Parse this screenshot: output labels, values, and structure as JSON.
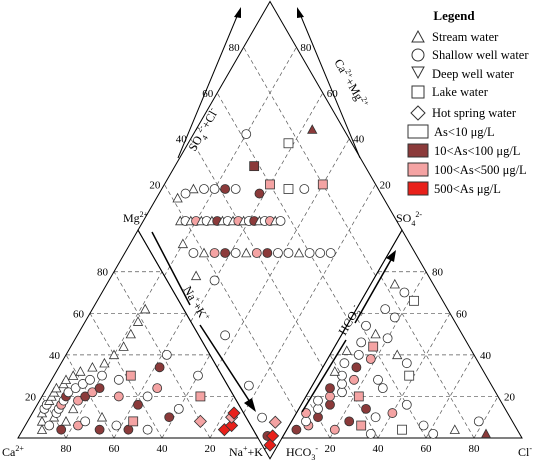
{
  "chart_data": {
    "type": "scatter",
    "subtype": "piper-diagram",
    "legend": {
      "title": "Legend",
      "placement": "top-right",
      "shape_entries": [
        {
          "label": "Stream water",
          "marker": "triangle-up"
        },
        {
          "label": "Shallow well water",
          "marker": "circle"
        },
        {
          "label": "Deep well water",
          "marker": "triangle-down"
        },
        {
          "label": "Lake water",
          "marker": "square"
        },
        {
          "label": "Hot spring water",
          "marker": "diamond"
        }
      ],
      "color_entries": [
        {
          "label": "As<10 μg/L",
          "color": "#ffffff"
        },
        {
          "label": "10<As<100 μg/L",
          "color": "#8b3a3a"
        },
        {
          "label": "100<As<500 μg/L",
          "color": "#f4a3a3"
        },
        {
          "label": "500<As μg/L",
          "color": "#e8201a"
        }
      ]
    },
    "tick_labels": [
      "20",
      "40",
      "60",
      "80"
    ],
    "axis_labels": {
      "ca": "Ca",
      "ca_sup": "2+",
      "mg": "Mg",
      "mg_sup": "2+",
      "nak": "Na",
      "nak_sup1": "+",
      "nak_mid": "+K",
      "nak_sup2": "+",
      "hco3": "HCO",
      "hco3_sub": "3",
      "hco3_sup": "-",
      "cl": "Cl",
      "cl_sup": "-",
      "so4": "SO",
      "so4_sub": "4",
      "so4_sup": "2-",
      "so4cl": "SO",
      "so4cl_sub": "4",
      "so4cl_sup": "2-",
      "so4cl_rest": "+Cl",
      "so4cl_rest_sup": "-",
      "camg": "Ca",
      "camg_sup": "2+",
      "camg_mid": "+Mg",
      "camg_sup2": "2+"
    },
    "colors": {
      "low": "#ffffff",
      "mid": "#8b3a3a",
      "high": "#f4a3a3",
      "vhigh": "#e8201a",
      "stroke": "#333333"
    },
    "cation_points": [
      {
        "ca": 86,
        "mg": 8,
        "m": "t",
        "c": "low"
      },
      {
        "ca": 84,
        "mg": 12,
        "m": "t",
        "c": "low"
      },
      {
        "ca": 82,
        "mg": 14,
        "m": "c",
        "c": "low"
      },
      {
        "ca": 80,
        "mg": 10,
        "m": "t",
        "c": "low"
      },
      {
        "ca": 80,
        "mg": 16,
        "m": "c",
        "c": "low"
      },
      {
        "ca": 78,
        "mg": 18,
        "m": "t",
        "c": "low"
      },
      {
        "ca": 78,
        "mg": 12,
        "m": "c",
        "c": "low"
      },
      {
        "ca": 76,
        "mg": 20,
        "m": "t",
        "c": "low"
      },
      {
        "ca": 76,
        "mg": 14,
        "m": "c",
        "c": "low"
      },
      {
        "ca": 74,
        "mg": 22,
        "m": "t",
        "c": "low"
      },
      {
        "ca": 74,
        "mg": 16,
        "m": "c",
        "c": "high"
      },
      {
        "ca": 72,
        "mg": 18,
        "m": "c",
        "c": "low"
      },
      {
        "ca": 72,
        "mg": 24,
        "m": "t",
        "c": "low"
      },
      {
        "ca": 70,
        "mg": 20,
        "m": "c",
        "c": "mid"
      },
      {
        "ca": 70,
        "mg": 14,
        "m": "t",
        "c": "low"
      },
      {
        "ca": 68,
        "mg": 22,
        "m": "c",
        "c": "low"
      },
      {
        "ca": 68,
        "mg": 26,
        "m": "t",
        "c": "low"
      },
      {
        "ca": 66,
        "mg": 18,
        "m": "c",
        "c": "high"
      },
      {
        "ca": 66,
        "mg": 28,
        "m": "t",
        "c": "low"
      },
      {
        "ca": 64,
        "mg": 24,
        "m": "c",
        "c": "low"
      },
      {
        "ca": 62,
        "mg": 20,
        "m": "c",
        "c": "mid"
      },
      {
        "ca": 62,
        "mg": 30,
        "m": "t",
        "c": "low"
      },
      {
        "ca": 60,
        "mg": 26,
        "m": "c",
        "c": "low"
      },
      {
        "ca": 58,
        "mg": 22,
        "m": "c",
        "c": "high"
      },
      {
        "ca": 58,
        "mg": 32,
        "m": "t",
        "c": "low"
      },
      {
        "ca": 56,
        "mg": 28,
        "m": "c",
        "c": "low"
      },
      {
        "ca": 54,
        "mg": 24,
        "m": "c",
        "c": "mid"
      },
      {
        "ca": 52,
        "mg": 34,
        "m": "t",
        "c": "low"
      },
      {
        "ca": 50,
        "mg": 30,
        "m": "c",
        "c": "low"
      },
      {
        "ca": 48,
        "mg": 20,
        "m": "c",
        "c": "high"
      },
      {
        "ca": 46,
        "mg": 36,
        "m": "t",
        "c": "low"
      },
      {
        "ca": 44,
        "mg": 28,
        "m": "c",
        "c": "low"
      },
      {
        "ca": 42,
        "mg": 16,
        "m": "c",
        "c": "mid"
      },
      {
        "ca": 40,
        "mg": 40,
        "m": "t",
        "c": "low"
      },
      {
        "ca": 38,
        "mg": 30,
        "m": "s",
        "c": "high"
      },
      {
        "ca": 36,
        "mg": 20,
        "m": "c",
        "c": "low"
      },
      {
        "ca": 34,
        "mg": 44,
        "m": "t",
        "c": "low"
      },
      {
        "ca": 32,
        "mg": 10,
        "m": "c",
        "c": "mid"
      },
      {
        "ca": 30,
        "mg": 24,
        "m": "c",
        "c": "high"
      },
      {
        "ca": 28,
        "mg": 50,
        "m": "t",
        "c": "low"
      },
      {
        "ca": 26,
        "mg": 14,
        "m": "c",
        "c": "low"
      },
      {
        "ca": 24,
        "mg": 34,
        "m": "c",
        "c": "mid"
      },
      {
        "ca": 22,
        "mg": 56,
        "m": "t",
        "c": "low"
      },
      {
        "ca": 20,
        "mg": 8,
        "m": "d",
        "c": "high"
      },
      {
        "ca": 18,
        "mg": 40,
        "m": "c",
        "c": "low"
      },
      {
        "ca": 16,
        "mg": 62,
        "m": "t",
        "c": "low"
      },
      {
        "ca": 14,
        "mg": 20,
        "m": "s",
        "c": "high"
      },
      {
        "ca": 12,
        "mg": 4,
        "m": "d",
        "c": "vhigh"
      },
      {
        "ca": 10,
        "mg": 30,
        "m": "c",
        "c": "low"
      },
      {
        "ca": 8,
        "mg": 6,
        "m": "d",
        "c": "vhigh"
      },
      {
        "ca": 6,
        "mg": 10,
        "m": "d",
        "c": "high"
      },
      {
        "ca": 4,
        "mg": 12,
        "m": "d",
        "c": "vhigh"
      },
      {
        "ca": 88,
        "mg": 4,
        "m": "t",
        "c": "low"
      },
      {
        "ca": 84,
        "mg": 6,
        "m": "c",
        "c": "low"
      },
      {
        "ca": 80,
        "mg": 4,
        "m": "c",
        "c": "mid"
      },
      {
        "ca": 76,
        "mg": 8,
        "m": "t",
        "c": "low"
      },
      {
        "ca": 72,
        "mg": 6,
        "m": "c",
        "c": "high"
      },
      {
        "ca": 68,
        "mg": 8,
        "m": "c",
        "c": "low"
      },
      {
        "ca": 64,
        "mg": 4,
        "m": "c",
        "c": "mid"
      },
      {
        "ca": 60,
        "mg": 10,
        "m": "t",
        "c": "low"
      },
      {
        "ca": 56,
        "mg": 6,
        "m": "c",
        "c": "low"
      },
      {
        "ca": 52,
        "mg": 4,
        "m": "c",
        "c": "mid"
      },
      {
        "ca": 48,
        "mg": 8,
        "m": "s",
        "c": "high"
      },
      {
        "ca": 44,
        "mg": 4,
        "m": "c",
        "c": "low"
      }
    ],
    "anion_points": [
      {
        "so4": 4,
        "cl": 4,
        "m": "c",
        "c": "mid"
      },
      {
        "so4": 6,
        "cl": 8,
        "m": "c",
        "c": "high"
      },
      {
        "so4": 8,
        "cl": 6,
        "m": "c",
        "c": "low"
      },
      {
        "so4": 10,
        "cl": 10,
        "m": "c",
        "c": "mid"
      },
      {
        "so4": 12,
        "cl": 4,
        "m": "c",
        "c": "high"
      },
      {
        "so4": 14,
        "cl": 8,
        "m": "c",
        "c": "low"
      },
      {
        "so4": 16,
        "cl": 12,
        "m": "c",
        "c": "mid"
      },
      {
        "so4": 18,
        "cl": 6,
        "m": "c",
        "c": "low"
      },
      {
        "so4": 20,
        "cl": 10,
        "m": "c",
        "c": "high"
      },
      {
        "so4": 22,
        "cl": 14,
        "m": "c",
        "c": "low"
      },
      {
        "so4": 24,
        "cl": 8,
        "m": "c",
        "c": "mid"
      },
      {
        "so4": 26,
        "cl": 12,
        "m": "c",
        "c": "low"
      },
      {
        "so4": 28,
        "cl": 16,
        "m": "c",
        "c": "high"
      },
      {
        "so4": 30,
        "cl": 10,
        "m": "c",
        "c": "low"
      },
      {
        "so4": 32,
        "cl": 6,
        "m": "t",
        "c": "low"
      },
      {
        "so4": 34,
        "cl": 14,
        "m": "c",
        "c": "mid"
      },
      {
        "so4": 36,
        "cl": 8,
        "m": "c",
        "c": "low"
      },
      {
        "so4": 38,
        "cl": 18,
        "m": "c",
        "c": "high"
      },
      {
        "so4": 40,
        "cl": 12,
        "m": "c",
        "c": "low"
      },
      {
        "so4": 42,
        "cl": 6,
        "m": "t",
        "c": "low"
      },
      {
        "so4": 44,
        "cl": 16,
        "m": "s",
        "c": "high"
      },
      {
        "so4": 46,
        "cl": 10,
        "m": "c",
        "c": "low"
      },
      {
        "so4": 48,
        "cl": 20,
        "m": "c",
        "c": "low"
      },
      {
        "so4": 50,
        "cl": 14,
        "m": "t",
        "c": "low"
      },
      {
        "so4": 54,
        "cl": 8,
        "m": "c",
        "c": "low"
      },
      {
        "so4": 58,
        "cl": 18,
        "m": "c",
        "c": "low"
      },
      {
        "so4": 62,
        "cl": 12,
        "m": "c",
        "c": "low"
      },
      {
        "so4": 66,
        "cl": 22,
        "m": "s",
        "c": "low"
      },
      {
        "so4": 70,
        "cl": 16,
        "m": "c",
        "c": "low"
      },
      {
        "so4": 74,
        "cl": 10,
        "m": "t",
        "c": "low"
      },
      {
        "so4": 4,
        "cl": 20,
        "m": "c",
        "c": "high"
      },
      {
        "so4": 8,
        "cl": 24,
        "m": "c",
        "c": "mid"
      },
      {
        "so4": 6,
        "cl": 30,
        "m": "s",
        "c": "high"
      },
      {
        "so4": 10,
        "cl": 34,
        "m": "c",
        "c": "low"
      },
      {
        "so4": 12,
        "cl": 40,
        "m": "c",
        "c": "high"
      },
      {
        "so4": 14,
        "cl": 28,
        "m": "c",
        "c": "mid"
      },
      {
        "so4": 16,
        "cl": 44,
        "m": "c",
        "c": "low"
      },
      {
        "so4": 2,
        "cl": 36,
        "m": "c",
        "c": "low"
      },
      {
        "so4": 4,
        "cl": 48,
        "m": "s",
        "c": "low"
      },
      {
        "so4": 6,
        "cl": 56,
        "m": "c",
        "c": "low"
      },
      {
        "so4": 2,
        "cl": 62,
        "m": "c",
        "c": "low"
      },
      {
        "so4": 4,
        "cl": 70,
        "m": "t",
        "c": "low"
      },
      {
        "so4": 8,
        "cl": 78,
        "m": "c",
        "c": "low"
      },
      {
        "so4": 2,
        "cl": 84,
        "m": "t",
        "c": "mid"
      },
      {
        "so4": 20,
        "cl": 22,
        "m": "s",
        "c": "high"
      },
      {
        "so4": 24,
        "cl": 30,
        "m": "c",
        "c": "low"
      },
      {
        "so4": 28,
        "cl": 26,
        "m": "c",
        "c": "low"
      },
      {
        "so4": 30,
        "cl": 38,
        "m": "s",
        "c": "low"
      },
      {
        "so4": 36,
        "cl": 34,
        "m": "c",
        "c": "low"
      },
      {
        "so4": 40,
        "cl": 28,
        "m": "t",
        "c": "low"
      }
    ],
    "diamond_points": [
      {
        "so4cl": 18,
        "camg": 86,
        "m": "t",
        "c": "low"
      },
      {
        "so4cl": 20,
        "camg": 84,
        "m": "c",
        "c": "low"
      },
      {
        "so4cl": 22,
        "camg": 82,
        "m": "t",
        "c": "low"
      },
      {
        "so4cl": 24,
        "camg": 80,
        "m": "c",
        "c": "high"
      },
      {
        "so4cl": 26,
        "camg": 78,
        "m": "t",
        "c": "low"
      },
      {
        "so4cl": 28,
        "camg": 76,
        "m": "c",
        "c": "low"
      },
      {
        "so4cl": 30,
        "camg": 74,
        "m": "t",
        "c": "low"
      },
      {
        "so4cl": 32,
        "camg": 72,
        "m": "c",
        "c": "mid"
      },
      {
        "so4cl": 34,
        "camg": 70,
        "m": "t",
        "c": "low"
      },
      {
        "so4cl": 36,
        "camg": 68,
        "m": "c",
        "c": "low"
      },
      {
        "so4cl": 38,
        "camg": 66,
        "m": "t",
        "c": "low"
      },
      {
        "so4cl": 40,
        "camg": 64,
        "m": "c",
        "c": "high"
      },
      {
        "so4cl": 42,
        "camg": 62,
        "m": "t",
        "c": "low"
      },
      {
        "so4cl": 44,
        "camg": 60,
        "m": "c",
        "c": "low"
      },
      {
        "so4cl": 46,
        "camg": 58,
        "m": "c",
        "c": "mid"
      },
      {
        "so4cl": 48,
        "camg": 56,
        "m": "t",
        "c": "low"
      },
      {
        "so4cl": 50,
        "camg": 54,
        "m": "c",
        "c": "low"
      },
      {
        "so4cl": 52,
        "camg": 52,
        "m": "c",
        "c": "high"
      },
      {
        "so4cl": 54,
        "camg": 50,
        "m": "t",
        "c": "low"
      },
      {
        "so4cl": 56,
        "camg": 48,
        "m": "c",
        "c": "low"
      },
      {
        "so4cl": 14,
        "camg": 80,
        "m": "t",
        "c": "low"
      },
      {
        "so4cl": 16,
        "camg": 74,
        "m": "c",
        "c": "low"
      },
      {
        "so4cl": 20,
        "camg": 70,
        "m": "t",
        "c": "low"
      },
      {
        "so4cl": 24,
        "camg": 66,
        "m": "c",
        "c": "high"
      },
      {
        "so4cl": 28,
        "camg": 62,
        "m": "c",
        "c": "mid"
      },
      {
        "so4cl": 32,
        "camg": 58,
        "m": "c",
        "c": "low"
      },
      {
        "so4cl": 36,
        "camg": 54,
        "m": "t",
        "c": "low"
      },
      {
        "so4cl": 40,
        "camg": 50,
        "m": "c",
        "c": "high"
      },
      {
        "so4cl": 44,
        "camg": 46,
        "m": "c",
        "c": "mid"
      },
      {
        "so4cl": 48,
        "camg": 42,
        "m": "c",
        "c": "low"
      },
      {
        "so4cl": 52,
        "camg": 38,
        "m": "c",
        "c": "low"
      },
      {
        "so4cl": 56,
        "camg": 34,
        "m": "t",
        "c": "low"
      },
      {
        "so4cl": 60,
        "camg": 30,
        "m": "c",
        "c": "low"
      },
      {
        "so4cl": 64,
        "camg": 26,
        "m": "c",
        "c": "low"
      },
      {
        "so4cl": 68,
        "camg": 22,
        "m": "c",
        "c": "low"
      },
      {
        "so4cl": 30,
        "camg": 88,
        "m": "t",
        "c": "low"
      },
      {
        "so4cl": 34,
        "camg": 84,
        "m": "c",
        "c": "low"
      },
      {
        "so4cl": 38,
        "camg": 80,
        "m": "c",
        "c": "low"
      },
      {
        "so4cl": 42,
        "camg": 76,
        "m": "c",
        "c": "mid"
      },
      {
        "so4cl": 46,
        "camg": 72,
        "m": "c",
        "c": "low"
      },
      {
        "so4cl": 60,
        "camg": 60,
        "m": "s",
        "c": "high"
      },
      {
        "so4cl": 66,
        "camg": 52,
        "m": "s",
        "c": "low"
      },
      {
        "so4cl": 72,
        "camg": 46,
        "m": "c",
        "c": "low"
      },
      {
        "so4cl": 80,
        "camg": 40,
        "m": "s",
        "c": "high"
      },
      {
        "so4cl": 88,
        "camg": 56,
        "m": "t",
        "c": "mid"
      },
      {
        "so4cl": 76,
        "camg": 62,
        "m": "s",
        "c": "low"
      },
      {
        "so4cl": 58,
        "camg": 70,
        "m": "s",
        "c": "mid"
      },
      {
        "so4cl": 62,
        "camg": 80,
        "m": "c",
        "c": "low"
      },
      {
        "so4cl": 26,
        "camg": 90,
        "m": "c",
        "c": "low"
      },
      {
        "so4cl": 22,
        "camg": 92,
        "m": "t",
        "c": "low"
      },
      {
        "so4cl": 54,
        "camg": 62,
        "m": "c",
        "c": "mid"
      },
      {
        "so4cl": 18,
        "camg": 60,
        "m": "c",
        "c": "low"
      },
      {
        "so4cl": 12,
        "camg": 68,
        "m": "t",
        "c": "low"
      },
      {
        "so4cl": 10,
        "camg": 44,
        "m": "c",
        "c": "low"
      },
      {
        "so4cl": 8,
        "camg": 24,
        "m": "c",
        "c": "low"
      },
      {
        "so4cl": 6,
        "camg": 12,
        "m": "c",
        "c": "low"
      },
      {
        "so4cl": 4,
        "camg": 6,
        "m": "c",
        "c": "mid"
      },
      {
        "so4cl": 3,
        "camg": 3,
        "m": "d",
        "c": "vhigh"
      },
      {
        "so4cl": 6,
        "camg": 4,
        "m": "d",
        "c": "vhigh"
      },
      {
        "so4cl": 10,
        "camg": 6,
        "m": "d",
        "c": "high"
      }
    ]
  }
}
